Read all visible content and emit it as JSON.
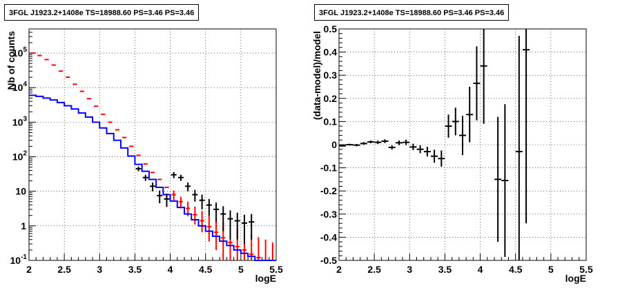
{
  "chart_data": [
    {
      "type": "histogram",
      "title": "3FGL J1923.2+1408e TS=18988.60 PS=3.46 PS=3.46",
      "xlabel": "logE",
      "ylabel": "Nb of counts",
      "xlim": [
        2,
        5.5
      ],
      "ylim": [
        0.1,
        500000
      ],
      "yscale": "log",
      "grid": true,
      "xticks": [
        "2",
        "2.5",
        "3",
        "3.5",
        "4",
        "4.5",
        "5",
        "5.5"
      ],
      "yticks": [
        {
          "label": "10^-1",
          "base": "10",
          "exp": "-1",
          "v": 0.1
        },
        {
          "label": "1",
          "v": 1
        },
        {
          "label": "10",
          "v": 10
        },
        {
          "label": "10^2",
          "base": "10",
          "exp": "2",
          "v": 100
        },
        {
          "label": "10^3",
          "base": "10",
          "exp": "3",
          "v": 1000
        },
        {
          "label": "10^4",
          "base": "10",
          "exp": "4",
          "v": 10000
        },
        {
          "label": "10^5",
          "base": "10",
          "exp": "5",
          "v": 100000
        }
      ],
      "bin_edges": [
        2.0,
        2.1,
        2.2,
        2.3,
        2.4,
        2.5,
        2.6,
        2.7,
        2.8,
        2.9,
        3.0,
        3.1,
        3.2,
        3.3,
        3.4,
        3.5,
        3.6,
        3.7,
        3.8,
        3.9,
        4.0,
        4.1,
        4.2,
        4.3,
        4.4,
        4.5,
        4.6,
        4.7,
        4.8,
        4.9,
        5.0,
        5.1,
        5.2,
        5.3,
        5.4,
        5.5
      ],
      "series": [
        {
          "role": "model_total",
          "color": "#0000ff",
          "style": "step",
          "values": [
            6000,
            5600,
            5000,
            4400,
            3700,
            3000,
            2400,
            1850,
            1400,
            1000,
            680,
            470,
            300,
            180,
            105,
            60,
            38,
            22,
            13,
            8,
            5.2,
            3.4,
            2.2,
            1.5,
            1.0,
            0.7,
            0.5,
            0.36,
            0.27,
            0.2,
            0.16,
            0.13,
            0.1,
            0.08,
            0.06
          ]
        },
        {
          "role": "model_component",
          "color": "#ff0000",
          "style": "errorbar",
          "values": [
            100000,
            85000,
            65000,
            45000,
            30000,
            20000,
            12500,
            7800,
            4800,
            2900,
            1700,
            1000,
            600,
            360,
            200,
            110,
            62,
            35,
            22,
            13,
            8,
            5,
            3.2,
            2.1,
            1.4,
            0.95,
            0.65,
            0.45,
            0.33,
            0.25,
            0.2,
            0.15,
            0.12,
            0.1,
            0.08
          ],
          "err_low": [
            0,
            0,
            0,
            0,
            0,
            0,
            0,
            0,
            0,
            0,
            0,
            0,
            0,
            0,
            0,
            0,
            0,
            0,
            0,
            0,
            2.5,
            1.8,
            1.3,
            1.0,
            0.75,
            0.6,
            0.45,
            0.35,
            0.28,
            0.22,
            0.18,
            0.14,
            0.11,
            0.09,
            0.07
          ],
          "err_high": [
            0,
            0,
            0,
            0,
            0,
            0,
            0,
            0,
            0,
            0,
            0,
            0,
            0,
            0,
            0,
            0,
            0,
            0,
            0,
            0,
            2.5,
            2.0,
            1.8,
            1.5,
            1.3,
            1.1,
            0.9,
            0.8,
            0.7,
            0.6,
            0.5,
            0.4,
            0.35,
            0.3,
            0.25
          ]
        },
        {
          "role": "data",
          "color": "#000000",
          "style": "errorbar",
          "x": [
            3.55,
            3.65,
            3.75,
            3.85,
            3.95,
            4.05,
            4.15,
            4.25,
            4.35,
            4.45,
            4.55,
            4.65,
            4.75,
            4.85,
            4.95,
            5.05,
            5.15
          ],
          "values": [
            45,
            25,
            14,
            7.5,
            6,
            30,
            25,
            14,
            8,
            5.5,
            4,
            3,
            2.2,
            1.6,
            1.4,
            1.2,
            1.3
          ],
          "err_low": [
            7,
            5,
            4,
            3,
            2.5,
            6,
            5,
            4,
            3,
            2.5,
            2,
            1.7,
            1.5,
            1.2,
            1.0,
            0.9,
            0.9
          ],
          "err_high": [
            7,
            5,
            4,
            3,
            2.5,
            6,
            5,
            4,
            3,
            2.5,
            2,
            1.7,
            1.5,
            1.2,
            1.0,
            0.9,
            0.9
          ]
        }
      ]
    },
    {
      "type": "scatter",
      "title": "3FGL J1923.2+1408e TS=18988.60 PS=3.46 PS=3.46",
      "xlabel": "logE",
      "ylabel": "(data-model)/model",
      "xlim": [
        2,
        5.5
      ],
      "ylim": [
        -0.5,
        0.5
      ],
      "grid": true,
      "xticks": [
        "2",
        "2.5",
        "3",
        "3.5",
        "4",
        "4.5",
        "5",
        "5.5"
      ],
      "yticks": [
        "-0.5",
        "-0.4",
        "-0.3",
        "-0.2",
        "-0.1",
        "0",
        "0.1",
        "0.2",
        "0.3",
        "0.4",
        "0.5"
      ],
      "series": [
        {
          "color": "#000000",
          "points": [
            {
              "x": 2.05,
              "y": -0.005,
              "ey": 0.004
            },
            {
              "x": 2.15,
              "y": 0.0,
              "ey": 0.004
            },
            {
              "x": 2.25,
              "y": -0.002,
              "ey": 0.005
            },
            {
              "x": 2.35,
              "y": 0.005,
              "ey": 0.006
            },
            {
              "x": 2.45,
              "y": 0.012,
              "ey": 0.006
            },
            {
              "x": 2.55,
              "y": 0.01,
              "ey": 0.007
            },
            {
              "x": 2.65,
              "y": 0.015,
              "ey": 0.008
            },
            {
              "x": 2.75,
              "y": -0.012,
              "ey": 0.009
            },
            {
              "x": 2.85,
              "y": 0.008,
              "ey": 0.01
            },
            {
              "x": 2.95,
              "y": 0.01,
              "ey": 0.012
            },
            {
              "x": 3.05,
              "y": -0.01,
              "ey": 0.014
            },
            {
              "x": 3.15,
              "y": -0.02,
              "ey": 0.017
            },
            {
              "x": 3.25,
              "y": -0.03,
              "ey": 0.021
            },
            {
              "x": 3.35,
              "y": -0.05,
              "ey": 0.028
            },
            {
              "x": 3.45,
              "y": -0.06,
              "ey": 0.035
            },
            {
              "x": 3.55,
              "y": 0.08,
              "ey": 0.05
            },
            {
              "x": 3.65,
              "y": 0.1,
              "ey": 0.06
            },
            {
              "x": 3.75,
              "y": 0.04,
              "ey": 0.085
            },
            {
              "x": 3.85,
              "y": 0.13,
              "ey": 0.12
            },
            {
              "x": 3.95,
              "y": 0.265,
              "ey": 0.16
            },
            {
              "x": 4.05,
              "y": 0.34,
              "ey": 0.25
            },
            {
              "x": 4.25,
              "y": -0.15,
              "ey": 0.27
            },
            {
              "x": 4.35,
              "y": -0.155,
              "ey": 0.33
            },
            {
              "x": 4.55,
              "y": -0.03,
              "ey": 0.5
            },
            {
              "x": 4.65,
              "y": 0.41,
              "ey": 0.75
            }
          ]
        }
      ]
    }
  ]
}
